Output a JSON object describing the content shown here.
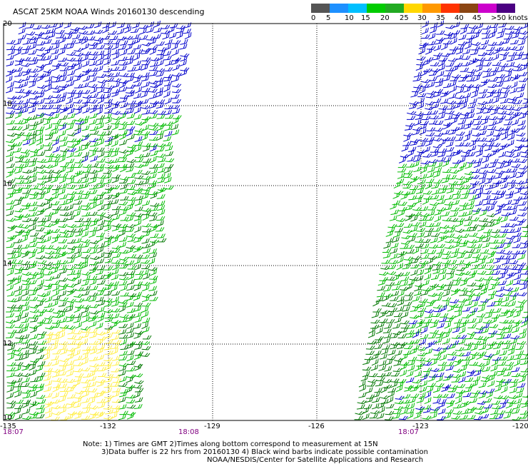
{
  "title": "ASCAT 25KM NOAA Winds 20160130 descending",
  "scale": {
    "labels": [
      "0",
      "5",
      "10",
      "15",
      "20",
      "25",
      "30",
      "35",
      "40",
      "45",
      ">50 knots"
    ],
    "colors": [
      "#555555",
      "#1e90ff",
      "#00bfff",
      "#00cc00",
      "#22aa22",
      "#ffd700",
      "#ff9900",
      "#ff3300",
      "#8b4513",
      "#cc00cc",
      "#4b0082"
    ]
  },
  "map": {
    "lat_labels": [
      "20",
      "18",
      "16",
      "14",
      "12",
      "10"
    ],
    "lon_labels": [
      "-135",
      "-132",
      "-129",
      "-126",
      "-123",
      "-120"
    ],
    "time_labels": [
      "18:07",
      "18:08",
      "18:07"
    ],
    "barb_colors": {
      "strong": "#0000cc",
      "medium": "#00bb00",
      "dark": "#007700",
      "light": "#ffee44"
    }
  },
  "notes": {
    "line1": "Note: 1) Times are GMT 2)Times along bottom correspond to measurement at 15N",
    "line2": "3)Data buffer is 22 hrs from 20160130 4) Black wind barbs indicate possible contamination",
    "line3": "NOAA/NESDIS/Center for Satellite Applications and Research"
  }
}
